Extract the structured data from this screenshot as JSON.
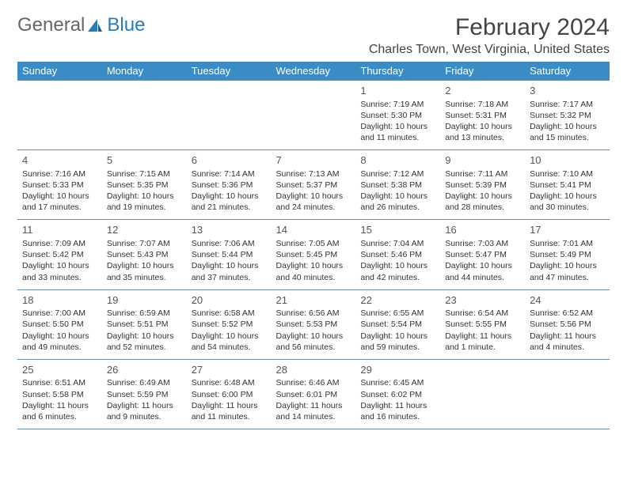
{
  "logo": {
    "text1": "General",
    "text2": "Blue"
  },
  "title": "February 2024",
  "location": "Charles Town, West Virginia, United States",
  "colors": {
    "header_bg": "#3b8bc5",
    "header_text": "#ffffff",
    "border": "#6a89a5",
    "logo_blue": "#2a7ab8",
    "text": "#333333"
  },
  "weekdays": [
    "Sunday",
    "Monday",
    "Tuesday",
    "Wednesday",
    "Thursday",
    "Friday",
    "Saturday"
  ],
  "weeks": [
    [
      null,
      null,
      null,
      null,
      {
        "d": "1",
        "sr": "7:19 AM",
        "ss": "5:30 PM",
        "dl": "10 hours and 11 minutes."
      },
      {
        "d": "2",
        "sr": "7:18 AM",
        "ss": "5:31 PM",
        "dl": "10 hours and 13 minutes."
      },
      {
        "d": "3",
        "sr": "7:17 AM",
        "ss": "5:32 PM",
        "dl": "10 hours and 15 minutes."
      }
    ],
    [
      {
        "d": "4",
        "sr": "7:16 AM",
        "ss": "5:33 PM",
        "dl": "10 hours and 17 minutes."
      },
      {
        "d": "5",
        "sr": "7:15 AM",
        "ss": "5:35 PM",
        "dl": "10 hours and 19 minutes."
      },
      {
        "d": "6",
        "sr": "7:14 AM",
        "ss": "5:36 PM",
        "dl": "10 hours and 21 minutes."
      },
      {
        "d": "7",
        "sr": "7:13 AM",
        "ss": "5:37 PM",
        "dl": "10 hours and 24 minutes."
      },
      {
        "d": "8",
        "sr": "7:12 AM",
        "ss": "5:38 PM",
        "dl": "10 hours and 26 minutes."
      },
      {
        "d": "9",
        "sr": "7:11 AM",
        "ss": "5:39 PM",
        "dl": "10 hours and 28 minutes."
      },
      {
        "d": "10",
        "sr": "7:10 AM",
        "ss": "5:41 PM",
        "dl": "10 hours and 30 minutes."
      }
    ],
    [
      {
        "d": "11",
        "sr": "7:09 AM",
        "ss": "5:42 PM",
        "dl": "10 hours and 33 minutes."
      },
      {
        "d": "12",
        "sr": "7:07 AM",
        "ss": "5:43 PM",
        "dl": "10 hours and 35 minutes."
      },
      {
        "d": "13",
        "sr": "7:06 AM",
        "ss": "5:44 PM",
        "dl": "10 hours and 37 minutes."
      },
      {
        "d": "14",
        "sr": "7:05 AM",
        "ss": "5:45 PM",
        "dl": "10 hours and 40 minutes."
      },
      {
        "d": "15",
        "sr": "7:04 AM",
        "ss": "5:46 PM",
        "dl": "10 hours and 42 minutes."
      },
      {
        "d": "16",
        "sr": "7:03 AM",
        "ss": "5:47 PM",
        "dl": "10 hours and 44 minutes."
      },
      {
        "d": "17",
        "sr": "7:01 AM",
        "ss": "5:49 PM",
        "dl": "10 hours and 47 minutes."
      }
    ],
    [
      {
        "d": "18",
        "sr": "7:00 AM",
        "ss": "5:50 PM",
        "dl": "10 hours and 49 minutes."
      },
      {
        "d": "19",
        "sr": "6:59 AM",
        "ss": "5:51 PM",
        "dl": "10 hours and 52 minutes."
      },
      {
        "d": "20",
        "sr": "6:58 AM",
        "ss": "5:52 PM",
        "dl": "10 hours and 54 minutes."
      },
      {
        "d": "21",
        "sr": "6:56 AM",
        "ss": "5:53 PM",
        "dl": "10 hours and 56 minutes."
      },
      {
        "d": "22",
        "sr": "6:55 AM",
        "ss": "5:54 PM",
        "dl": "10 hours and 59 minutes."
      },
      {
        "d": "23",
        "sr": "6:54 AM",
        "ss": "5:55 PM",
        "dl": "11 hours and 1 minute."
      },
      {
        "d": "24",
        "sr": "6:52 AM",
        "ss": "5:56 PM",
        "dl": "11 hours and 4 minutes."
      }
    ],
    [
      {
        "d": "25",
        "sr": "6:51 AM",
        "ss": "5:58 PM",
        "dl": "11 hours and 6 minutes."
      },
      {
        "d": "26",
        "sr": "6:49 AM",
        "ss": "5:59 PM",
        "dl": "11 hours and 9 minutes."
      },
      {
        "d": "27",
        "sr": "6:48 AM",
        "ss": "6:00 PM",
        "dl": "11 hours and 11 minutes."
      },
      {
        "d": "28",
        "sr": "6:46 AM",
        "ss": "6:01 PM",
        "dl": "11 hours and 14 minutes."
      },
      {
        "d": "29",
        "sr": "6:45 AM",
        "ss": "6:02 PM",
        "dl": "11 hours and 16 minutes."
      },
      null,
      null
    ]
  ],
  "labels": {
    "sunrise": "Sunrise: ",
    "sunset": "Sunset: ",
    "daylight": "Daylight: "
  }
}
